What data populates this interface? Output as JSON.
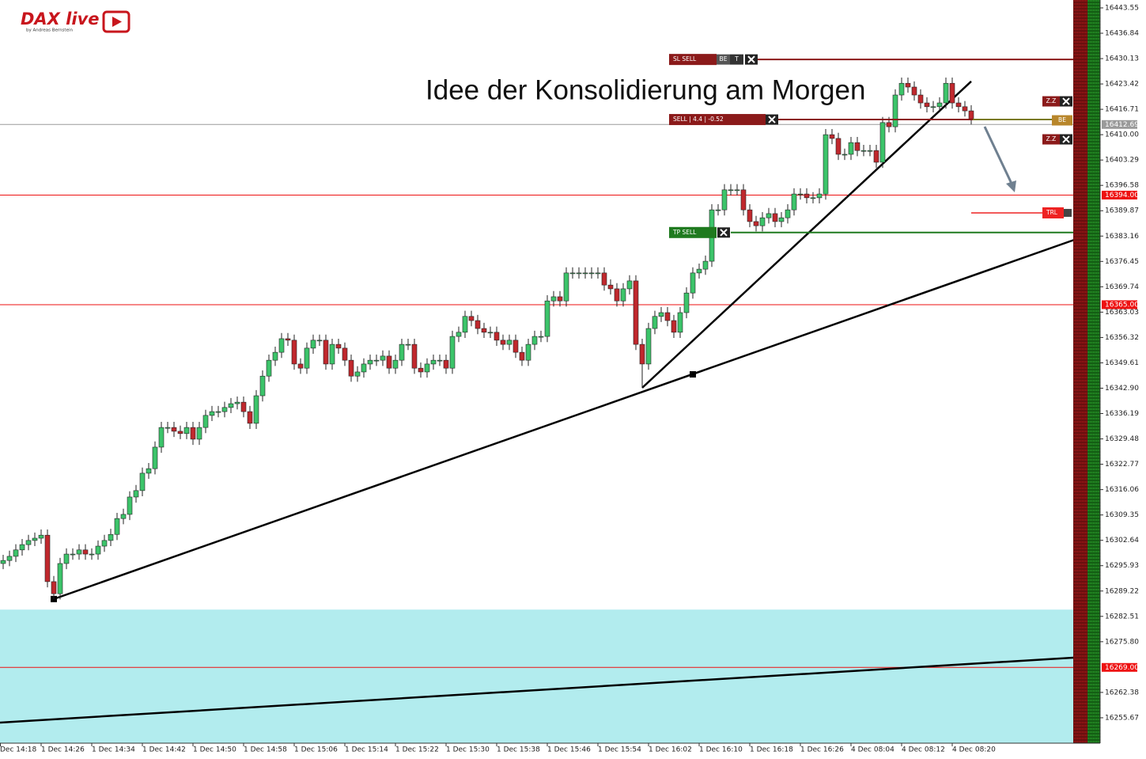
{
  "logo": {
    "title": "DAX live",
    "subtitle": "by Andreas Bernstein"
  },
  "chart_data": {
    "type": "candlestick",
    "annotation": "Idee der Konsolidierung am Morgen",
    "up_color": "#3cc46a",
    "down_color": "#c0282d",
    "wick_color": "#222222",
    "ylim": [
      16248.95,
      16445.64
    ],
    "yticks": [
      16443.55,
      16436.84,
      16430.13,
      16423.42,
      16416.71,
      {
        "value": 16410,
        "label": "16410.00"
      },
      16403.29,
      16396.58,
      16389.87,
      16383.16,
      16376.45,
      16369.74,
      16363.03,
      16356.32,
      16349.61,
      {
        "value": 16342.9,
        "label": "16342.90"
      },
      16336.19,
      16329.48,
      16322.77,
      16316.06,
      16309.35,
      16302.64,
      16295.93,
      16289.22,
      16282.51,
      {
        "value": 16275.8,
        "label": "16275.80"
      },
      16262.38,
      16255.67
    ],
    "categories": [
      "Dec 14:18",
      null,
      null,
      null,
      null,
      null,
      null,
      null,
      "1 Dec 14:26",
      null,
      null,
      null,
      null,
      null,
      null,
      null,
      "1 Dec 14:34",
      null,
      null,
      null,
      null,
      null,
      null,
      null,
      "1 Dec 14:42",
      null,
      null,
      null,
      null,
      null,
      null,
      null,
      "1 Dec 14:50",
      null,
      null,
      null,
      null,
      null,
      null,
      null,
      "1 Dec 14:58",
      null,
      null,
      null,
      null,
      null,
      null,
      null,
      "1 Dec 15:06",
      null,
      null,
      null,
      null,
      null,
      null,
      null,
      "1 Dec 15:14",
      null,
      null,
      null,
      null,
      null,
      null,
      null,
      "1 Dec 15:22",
      null,
      null,
      null,
      null,
      null,
      null,
      null,
      "1 Dec 15:30",
      null,
      null,
      null,
      null,
      null,
      null,
      null,
      "1 Dec 15:38",
      null,
      null,
      null,
      null,
      null,
      null,
      null,
      "1 Dec 15:46",
      null,
      null,
      null,
      null,
      null,
      null,
      null,
      "1 Dec 15:54",
      null,
      null,
      null,
      null,
      null,
      null,
      null,
      "1 Dec 16:02",
      null,
      null,
      null,
      null,
      null,
      null,
      null,
      "1 Dec 16:10",
      null,
      null,
      null,
      null,
      null,
      null,
      null,
      "1 Dec 16:18",
      null,
      null,
      null,
      null,
      null,
      null,
      null,
      "1 Dec 16:26",
      null,
      null,
      null,
      null,
      null,
      null,
      null,
      "4 Dec 08:04",
      null,
      null,
      null,
      null,
      null,
      null,
      null,
      "4 Dec 08:12",
      null,
      null,
      null,
      null,
      null,
      null,
      null,
      "4 Dec 08:20",
      null,
      null,
      null
    ],
    "open": [
      null,
      null,
      16296.5,
      16297.3,
      16298.4,
      16300.1,
      16301.5,
      16302.6,
      16303.2,
      16304.0,
      16291.7,
      16288.5,
      16296.5,
      16299.0,
      16299.0,
      16300.1,
      16299.0,
      16299.0,
      16301.1,
      16302.6,
      16304.2,
      16308.4,
      16309.5,
      16314.1,
      16315.8,
      16320.4,
      16321.6,
      16327.3,
      16332.5,
      16332.5,
      16331.5,
      16330.9,
      16332.5,
      16329.4,
      16332.5,
      16335.7,
      16336.7,
      16336.7,
      16337.8,
      16338.8,
      16339.2,
      16336.7,
      16333.6,
      16340.9,
      16346.1,
      16350.3,
      16352.4,
      16356.0,
      16355.6,
      16349.3,
      16348.2,
      16353.5,
      16355.6,
      16355.6,
      16349.3,
      16354.5,
      16353.5,
      16350.3,
      16346.1,
      16347.2,
      16349.3,
      16350.3,
      16350.3,
      16351.4,
      16348.2,
      16350.3,
      16354.5,
      16354.5,
      16348.2,
      16347.2,
      16349.3,
      16350.3,
      16350.3,
      16348.2,
      16356.6,
      16357.7,
      16361.9,
      16360.8,
      16358.7,
      16357.7,
      16357.7,
      16355.6,
      16354.5,
      16355.6,
      16352.4,
      16350.3,
      16354.5,
      16356.6,
      16356.6,
      16366.0,
      16367.1,
      16366.0,
      16373.4,
      16373.4,
      16373.4,
      16373.4,
      16373.4,
      16373.4,
      16370.2,
      16369.2,
      16366.0,
      16369.2,
      16371.3,
      16354.5,
      16349.3,
      16358.7,
      16361.9,
      16362.9,
      16360.8,
      16357.7,
      16362.9,
      16368.1,
      16373.4,
      16374.4,
      16376.5,
      16390.1,
      16390.1,
      16395.4,
      16395.4,
      16395.4,
      16390.1,
      16387.0,
      16385.9,
      16388.0,
      16389.1,
      16387.0,
      16388.0,
      16390.1,
      16394.3,
      16394.3,
      16393.3,
      16393.3,
      16394.3,
      16410.0,
      16409.0,
      16404.8,
      16404.8,
      16407.9,
      16405.8,
      16405.8,
      16405.8,
      16402.7,
      16413.2,
      16412.1,
      16420.5,
      16423.6,
      16422.6,
      16420.5,
      16418.4,
      16417.4,
      16417.4,
      16418.4,
      16423.6,
      16418.4,
      16417.4,
      16416.3
    ],
    "high": [
      null,
      null,
      16298.8,
      16299.9,
      16301.6,
      16303.0,
      16304.1,
      16304.7,
      16305.5,
      16305.5,
      16293.2,
      16298.0,
      16300.5,
      16300.5,
      16301.6,
      16301.6,
      16300.5,
      16302.6,
      16304.1,
      16305.7,
      16309.9,
      16311.0,
      16315.6,
      16317.3,
      16321.9,
      16323.1,
      16328.8,
      16334.0,
      16334.0,
      16334.0,
      16333.0,
      16334.0,
      16334.0,
      16334.0,
      16337.2,
      16338.2,
      16338.2,
      16339.3,
      16340.3,
      16340.7,
      16340.7,
      16338.2,
      16342.4,
      16347.6,
      16351.8,
      16353.9,
      16357.5,
      16357.5,
      16357.1,
      16350.8,
      16355.0,
      16357.1,
      16357.1,
      16357.1,
      16356.0,
      16356.0,
      16355.0,
      16351.8,
      16348.7,
      16350.8,
      16351.8,
      16351.8,
      16352.9,
      16352.9,
      16351.8,
      16356.0,
      16356.0,
      16356.0,
      16349.7,
      16350.8,
      16351.8,
      16351.8,
      16351.8,
      16358.1,
      16359.2,
      16363.4,
      16363.4,
      16362.3,
      16360.2,
      16359.2,
      16359.2,
      16357.1,
      16357.1,
      16357.1,
      16353.9,
      16356.0,
      16358.1,
      16358.1,
      16367.5,
      16368.6,
      16368.6,
      16374.9,
      16374.9,
      16374.9,
      16374.9,
      16374.9,
      16374.9,
      16374.9,
      16371.7,
      16370.7,
      16370.7,
      16372.8,
      16372.8,
      16356.0,
      16360.2,
      16363.4,
      16364.4,
      16364.4,
      16362.3,
      16364.4,
      16369.6,
      16374.9,
      16375.9,
      16378.0,
      16391.6,
      16391.6,
      16396.9,
      16396.9,
      16396.9,
      16396.9,
      16391.6,
      16388.5,
      16389.5,
      16390.6,
      16390.6,
      16389.5,
      16391.6,
      16395.8,
      16395.8,
      16395.8,
      16394.8,
      16395.8,
      16411.5,
      16411.5,
      16410.5,
      16406.3,
      16409.4,
      16409.4,
      16407.3,
      16407.3,
      16407.3,
      16414.7,
      16414.7,
      16422.0,
      16425.1,
      16425.1,
      16424.1,
      16422.0,
      16419.9,
      16418.9,
      16419.9,
      16425.1,
      16425.1,
      16419.9,
      16418.9,
      16417.8
    ],
    "low": [
      null,
      null,
      16295.0,
      16295.8,
      16296.9,
      16298.6,
      16300.0,
      16301.1,
      16301.7,
      16290.2,
      16287.0,
      16287.0,
      16295.0,
      16297.5,
      16297.5,
      16297.5,
      16297.5,
      16297.5,
      16299.6,
      16301.1,
      16302.7,
      16306.9,
      16308.0,
      16312.6,
      16314.3,
      16318.9,
      16320.1,
      16325.8,
      16331.0,
      16330.0,
      16329.4,
      16329.4,
      16327.9,
      16327.9,
      16331.0,
      16334.2,
      16335.2,
      16335.2,
      16336.3,
      16337.3,
      16335.2,
      16332.1,
      16332.1,
      16339.4,
      16344.6,
      16348.8,
      16350.9,
      16354.1,
      16347.8,
      16346.7,
      16346.7,
      16352.0,
      16354.1,
      16347.8,
      16347.8,
      16352.0,
      16348.8,
      16344.6,
      16344.6,
      16345.7,
      16347.8,
      16348.8,
      16348.8,
      16346.7,
      16346.7,
      16348.8,
      16353.0,
      16346.7,
      16345.7,
      16345.7,
      16347.8,
      16348.8,
      16346.7,
      16346.7,
      16355.1,
      16356.2,
      16359.3,
      16357.2,
      16356.2,
      16356.2,
      16354.1,
      16353.0,
      16353.0,
      16350.9,
      16348.8,
      16348.8,
      16353.0,
      16355.1,
      16355.1,
      16364.5,
      16364.5,
      16364.5,
      16371.9,
      16371.9,
      16371.9,
      16371.9,
      16371.9,
      16368.7,
      16367.7,
      16364.5,
      16364.5,
      16367.7,
      16353.0,
      16343.0,
      16347.8,
      16357.2,
      16360.4,
      16359.3,
      16356.2,
      16356.2,
      16361.4,
      16366.6,
      16371.9,
      16372.9,
      16375.0,
      16388.6,
      16388.6,
      16393.9,
      16393.9,
      16388.6,
      16385.5,
      16384.4,
      16384.4,
      16386.5,
      16385.5,
      16385.5,
      16386.5,
      16388.6,
      16392.8,
      16391.8,
      16391.8,
      16391.8,
      16392.8,
      16407.5,
      16403.3,
      16403.3,
      16403.3,
      16404.3,
      16404.3,
      16404.3,
      16401.2,
      16401.2,
      16410.6,
      16410.6,
      16419.0,
      16421.1,
      16419.0,
      16416.9,
      16415.9,
      16415.9,
      16415.9,
      16416.9,
      16416.9,
      16415.9,
      16414.8,
      16412.7
    ],
    "close": [
      null,
      null,
      16297.3,
      16298.4,
      16300.1,
      16301.5,
      16302.6,
      16303.2,
      16304.0,
      16291.7,
      16288.5,
      16296.5,
      16299.0,
      16299.0,
      16300.1,
      16299.0,
      16299.0,
      16301.1,
      16302.6,
      16304.2,
      16308.4,
      16309.5,
      16314.1,
      16315.8,
      16320.4,
      16321.6,
      16327.3,
      16332.5,
      16332.5,
      16331.5,
      16330.9,
      16332.5,
      16329.4,
      16332.5,
      16335.7,
      16336.7,
      16336.7,
      16337.8,
      16338.8,
      16339.2,
      16336.7,
      16333.6,
      16340.9,
      16346.1,
      16350.3,
      16352.4,
      16356.0,
      16355.6,
      16349.3,
      16348.2,
      16353.5,
      16355.6,
      16355.6,
      16349.3,
      16354.5,
      16353.5,
      16350.3,
      16346.1,
      16347.2,
      16349.3,
      16350.3,
      16350.3,
      16351.4,
      16348.2,
      16350.3,
      16354.5,
      16354.5,
      16348.2,
      16347.2,
      16349.3,
      16350.3,
      16350.3,
      16348.2,
      16356.6,
      16357.7,
      16361.9,
      16360.8,
      16358.7,
      16357.7,
      16357.7,
      16355.6,
      16354.5,
      16355.6,
      16352.4,
      16350.3,
      16354.5,
      16356.6,
      16356.6,
      16366.0,
      16367.1,
      16366.0,
      16373.4,
      16373.4,
      16373.4,
      16373.4,
      16373.4,
      16373.4,
      16370.2,
      16369.2,
      16366.0,
      16369.2,
      16371.3,
      16354.5,
      16349.3,
      16358.7,
      16361.9,
      16362.9,
      16360.8,
      16357.7,
      16362.9,
      16368.1,
      16373.4,
      16374.4,
      16376.5,
      16390.1,
      16390.1,
      16395.4,
      16395.4,
      16395.4,
      16390.1,
      16387.0,
      16385.9,
      16388.0,
      16389.1,
      16387.0,
      16388.0,
      16390.1,
      16394.3,
      16394.3,
      16393.3,
      16393.3,
      16394.3,
      16410.0,
      16409.0,
      16404.8,
      16404.8,
      16407.9,
      16405.8,
      16405.8,
      16405.8,
      16402.7,
      16413.2,
      16412.1,
      16420.5,
      16423.6,
      16422.6,
      16420.5,
      16418.4,
      16417.4,
      16417.4,
      16418.4,
      16423.6,
      16418.4,
      16417.4,
      16416.3,
      16414.2
    ],
    "zone": {
      "top": 16284.3,
      "color": "#b2ecee"
    },
    "price_lines": [
      {
        "value": 16412.69,
        "color": "#9a9a9a"
      },
      {
        "value": 16394,
        "label": "16394.00",
        "color": "#ee1111"
      },
      {
        "value": 16365,
        "label": "16365.00",
        "color": "#ee1111"
      },
      {
        "value": 16269,
        "label": "16269.00",
        "color": "#ee1111"
      }
    ],
    "trendlines": [
      {
        "x": [
          10,
          175.25
        ],
        "y": [
          16287.1,
          16384.5
        ]
      },
      {
        "x": [
          103,
          155
        ],
        "y": [
          16343.0,
          16424.1
        ]
      },
      {
        "x": [
          1.5,
          175.25
        ],
        "y": [
          16254.4,
          16272.0
        ]
      }
    ],
    "orders": [
      {
        "label": "SL SELL",
        "value": 16429.9,
        "color": "#8b1a1a",
        "buttons": [
          "BE",
          "T"
        ]
      },
      {
        "label": "SELL | 4.4 | -0.52",
        "value": 16414.0,
        "color": "#8b1a1a",
        "buttons": [
          "Z.Z",
          "BE",
          "Z.Z"
        ]
      },
      {
        "label": "TP SELL",
        "value": 16384.1,
        "color": "#1f7a1f"
      },
      {
        "label": "TRL",
        "value": 16389.3,
        "color": "#ee2222"
      }
    ]
  }
}
